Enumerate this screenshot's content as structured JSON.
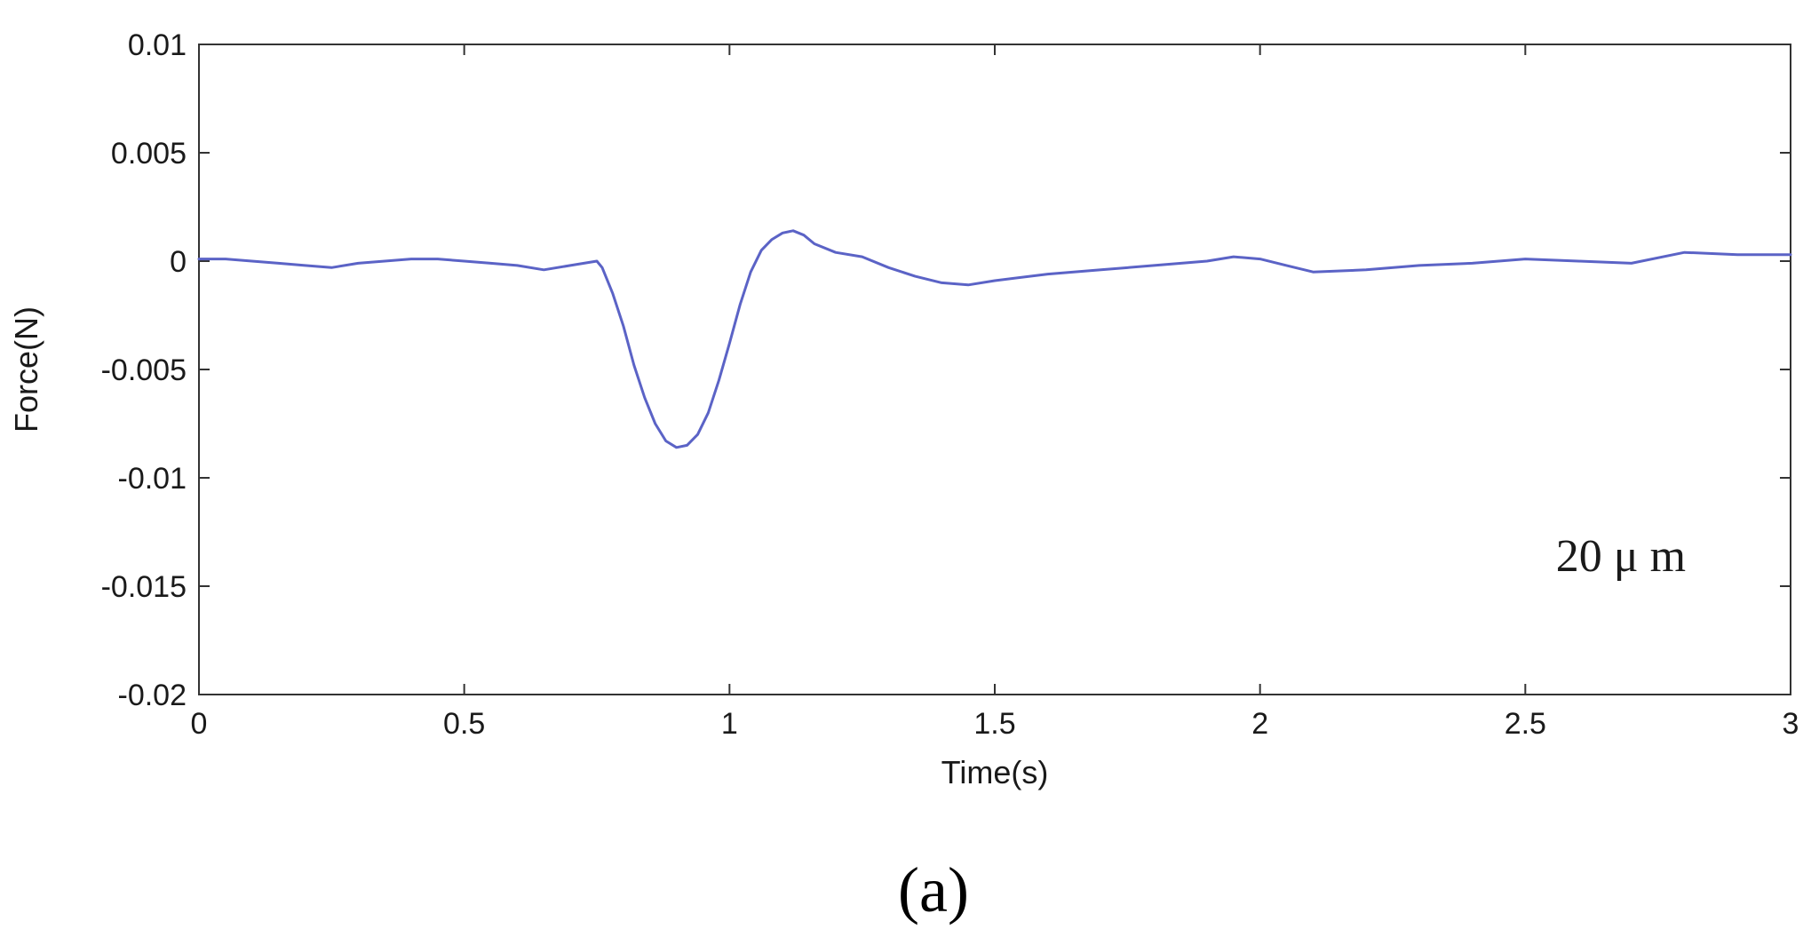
{
  "chart_data": {
    "type": "line",
    "title": "",
    "xlabel": "Time(s)",
    "ylabel": "Force(N)",
    "xlim": [
      0,
      3
    ],
    "ylim": [
      -0.02,
      0.01
    ],
    "xticks": [
      0,
      0.5,
      1,
      1.5,
      2,
      2.5,
      3
    ],
    "xtick_labels": [
      "0",
      "0.5",
      "1",
      "1.5",
      "2",
      "2.5",
      "3"
    ],
    "yticks": [
      0.01,
      0.005,
      0,
      -0.005,
      -0.01,
      -0.015,
      -0.02
    ],
    "ytick_labels": [
      "0.01",
      "0.005",
      "0",
      "-0.005",
      "-0.01",
      "-0.015",
      "-0.02"
    ],
    "grid": false,
    "legend": "none",
    "annotation": "20 μ m",
    "panel_label": "(a)",
    "line_color": "#5b63c6",
    "series": [
      {
        "x": [
          0,
          0.05,
          0.1,
          0.15,
          0.2,
          0.25,
          0.3,
          0.35,
          0.4,
          0.45,
          0.5,
          0.55,
          0.6,
          0.65,
          0.7,
          0.75,
          0.76,
          0.78,
          0.8,
          0.82,
          0.84,
          0.86,
          0.88,
          0.9,
          0.92,
          0.94,
          0.96,
          0.98,
          1.0,
          1.02,
          1.04,
          1.06,
          1.08,
          1.1,
          1.12,
          1.14,
          1.16,
          1.2,
          1.25,
          1.3,
          1.35,
          1.4,
          1.45,
          1.5,
          1.6,
          1.7,
          1.8,
          1.9,
          1.95,
          2.0,
          2.05,
          2.1,
          2.2,
          2.3,
          2.4,
          2.5,
          2.6,
          2.7,
          2.8,
          2.9,
          3.0
        ],
        "y": [
          0.0001,
          0.0001,
          0.0,
          -0.0001,
          -0.0002,
          -0.0003,
          -0.0001,
          0.0,
          0.0001,
          0.0001,
          0.0,
          -0.0001,
          -0.0002,
          -0.0004,
          -0.0002,
          0.0,
          -0.0003,
          -0.0015,
          -0.003,
          -0.0048,
          -0.0063,
          -0.0075,
          -0.0083,
          -0.0086,
          -0.0085,
          -0.008,
          -0.007,
          -0.0055,
          -0.0038,
          -0.002,
          -0.0005,
          0.0005,
          0.001,
          0.0013,
          0.0014,
          0.0012,
          0.0008,
          0.0004,
          0.0002,
          -0.0003,
          -0.0007,
          -0.001,
          -0.0011,
          -0.0009,
          -0.0006,
          -0.0004,
          -0.0002,
          0.0,
          0.0002,
          0.0001,
          -0.0002,
          -0.0005,
          -0.0004,
          -0.0002,
          -0.0001,
          0.0001,
          0.0,
          -0.0001,
          0.0004,
          0.0003,
          0.0003
        ]
      }
    ]
  }
}
